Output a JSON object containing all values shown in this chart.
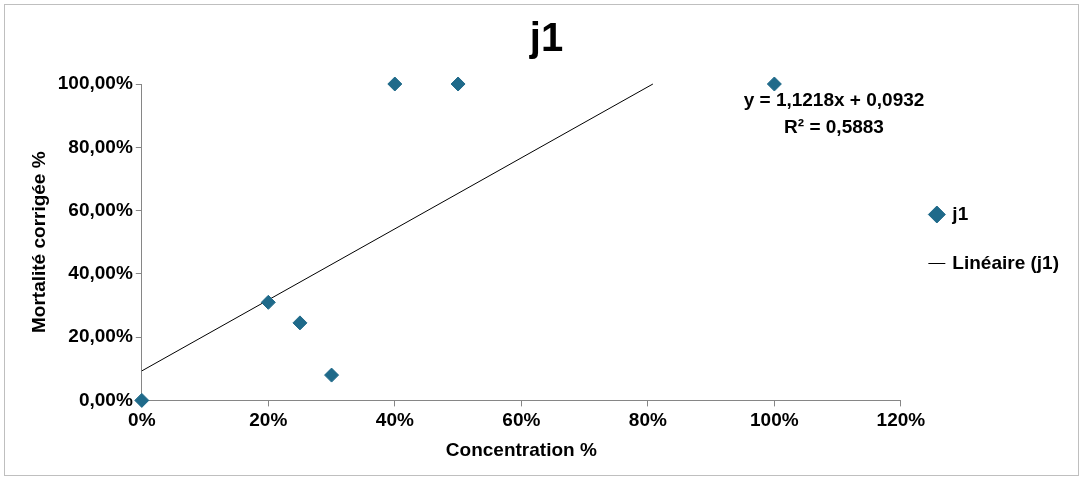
{
  "chart_data": {
    "type": "scatter",
    "title": "j1",
    "xlabel": "Concentration %",
    "ylabel": "Mortalité corrigée %",
    "xlim": [
      0,
      1.2
    ],
    "xticks": [
      {
        "value": 0,
        "label": "0%"
      },
      {
        "value": 0.2,
        "label": "20%"
      },
      {
        "value": 0.4,
        "label": "40%"
      },
      {
        "value": 0.6,
        "label": "60%"
      },
      {
        "value": 0.8,
        "label": "80%"
      },
      {
        "value": 1,
        "label": "100%"
      },
      {
        "value": 1.2,
        "label": "120%"
      }
    ],
    "ylim": [
      0,
      1
    ],
    "yticks": [
      {
        "value": 0,
        "label": "0,00%"
      },
      {
        "value": 0.2,
        "label": "20,00%"
      },
      {
        "value": 0.4,
        "label": "40,00%"
      },
      {
        "value": 0.6,
        "label": "60,00%"
      },
      {
        "value": 0.8,
        "label": "80,00%"
      },
      {
        "value": 1,
        "label": "100,00%"
      }
    ],
    "grid": false,
    "legend": "right",
    "series": [
      {
        "name": "j1",
        "type": "scatter",
        "marker": "diamond",
        "color": "#1f6a8a",
        "x": [
          0,
          0.2,
          0.25,
          0.3,
          0.4,
          0.5,
          1
        ],
        "values": [
          0,
          0.31,
          0.245,
          0.08,
          1,
          1,
          1
        ]
      },
      {
        "name": "Linéaire (j1)",
        "type": "line",
        "marker": "none",
        "color": "#000000",
        "x": [
          0,
          0.808
        ],
        "values": [
          0.0932,
          1
        ]
      }
    ],
    "annotations": [
      "y = 1,1218x + 0,0932",
      "R² = 0,5883"
    ]
  }
}
